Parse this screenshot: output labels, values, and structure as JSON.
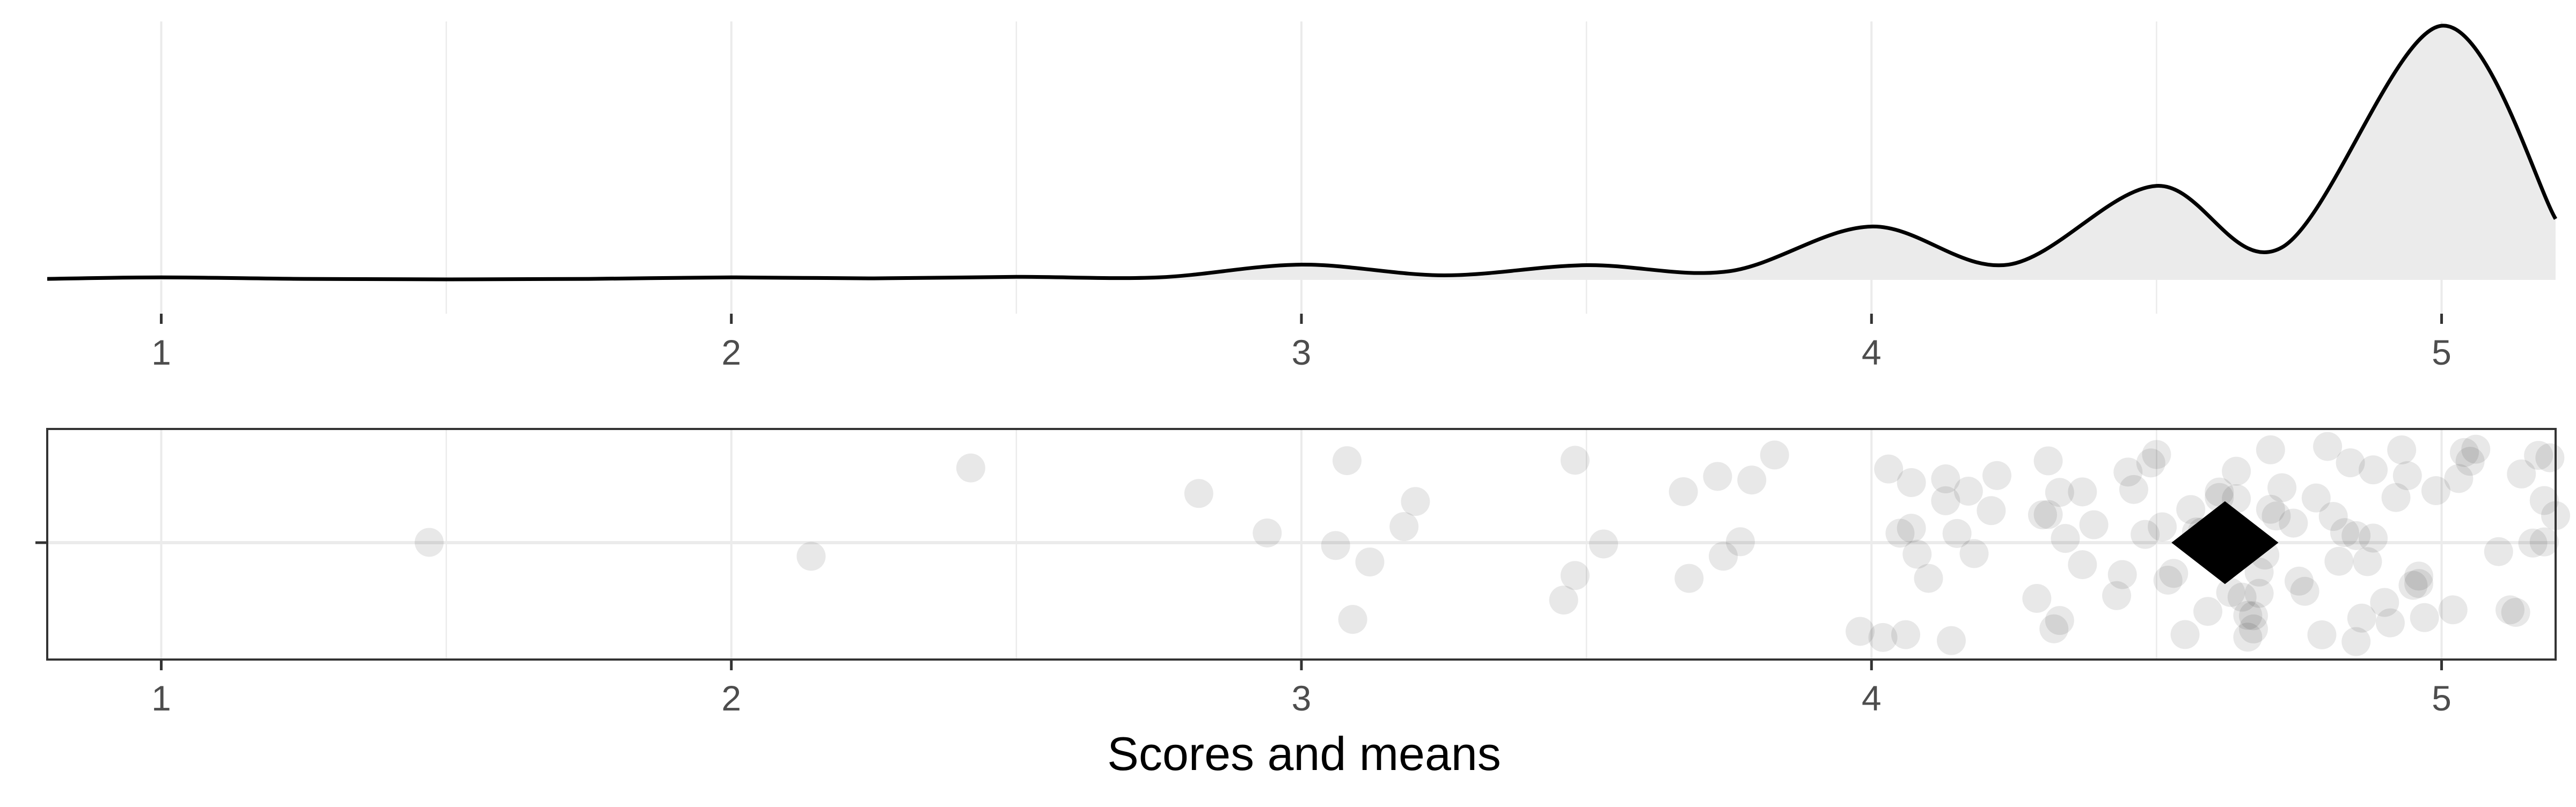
{
  "chart_data": [
    {
      "type": "area",
      "panel": "density",
      "x_range": [
        0.8,
        5.2
      ],
      "ticks": [
        1,
        2,
        3,
        4,
        5
      ],
      "tick_labels": [
        "1",
        "2",
        "3",
        "4",
        "5"
      ],
      "grid": true,
      "fill_color": "#ebebeb",
      "line_color": "#000000",
      "curve": {
        "x": [
          0.8,
          1.0,
          1.25,
          1.5,
          1.75,
          2.0,
          2.25,
          2.5,
          2.75,
          3.0,
          3.25,
          3.5,
          3.75,
          4.0,
          4.24,
          4.5,
          4.72,
          5.0,
          5.2
        ],
        "y": [
          0.004,
          0.01,
          0.004,
          0.002,
          0.004,
          0.01,
          0.006,
          0.012,
          0.01,
          0.06,
          0.018,
          0.058,
          0.034,
          0.21,
          0.06,
          0.37,
          0.128,
          1.0,
          0.24
        ]
      }
    },
    {
      "type": "scatter",
      "panel": "jitter",
      "x_range": [
        0.8,
        5.2
      ],
      "ticks": [
        1,
        2,
        3,
        4,
        5
      ],
      "tick_labels": [
        "1",
        "2",
        "3",
        "4",
        "5"
      ],
      "grid": true,
      "xlabel": "Scores and means",
      "point_color": "#000000",
      "point_opacity": 0.09,
      "mean": 4.62,
      "points_x": [
        1.47,
        2.14,
        2.42,
        2.82,
        2.94,
        3.06,
        3.08,
        3.09,
        3.12,
        3.18,
        3.2,
        3.46,
        3.48,
        3.48,
        3.53,
        3.67,
        3.68,
        3.73,
        3.74,
        3.77,
        3.79,
        3.83,
        3.98,
        4.02,
        4.03,
        4.05,
        4.06,
        4.07,
        4.07,
        4.08,
        4.1,
        4.13,
        4.13,
        4.14,
        4.15,
        4.17,
        4.18,
        4.21,
        4.22,
        4.29,
        4.3,
        4.31,
        4.31,
        4.32,
        4.33,
        4.33,
        4.34,
        4.37,
        4.37,
        4.39,
        4.43,
        4.44,
        4.45,
        4.46,
        4.48,
        4.49,
        4.5,
        4.51,
        4.52,
        4.53,
        4.55,
        4.56,
        4.57,
        4.58,
        4.58,
        4.59,
        4.59,
        4.6,
        4.61,
        4.61,
        4.63,
        4.64,
        4.64,
        4.65,
        4.66,
        4.66,
        4.67,
        4.67,
        4.68,
        4.68,
        4.69,
        4.7,
        4.7,
        4.71,
        4.72,
        4.74,
        4.75,
        4.76,
        4.78,
        4.79,
        4.8,
        4.81,
        4.82,
        4.83,
        4.84,
        4.85,
        4.85,
        4.86,
        4.87,
        4.88,
        4.88,
        4.9,
        4.91,
        4.92,
        4.93,
        4.94,
        4.95,
        4.96,
        4.96,
        4.97,
        4.99,
        5.02,
        5.03,
        5.04,
        5.05,
        5.06,
        5.1,
        5.12,
        5.13,
        5.14,
        5.16,
        5.17,
        5.18,
        5.18,
        5.19,
        5.2
      ]
    }
  ]
}
